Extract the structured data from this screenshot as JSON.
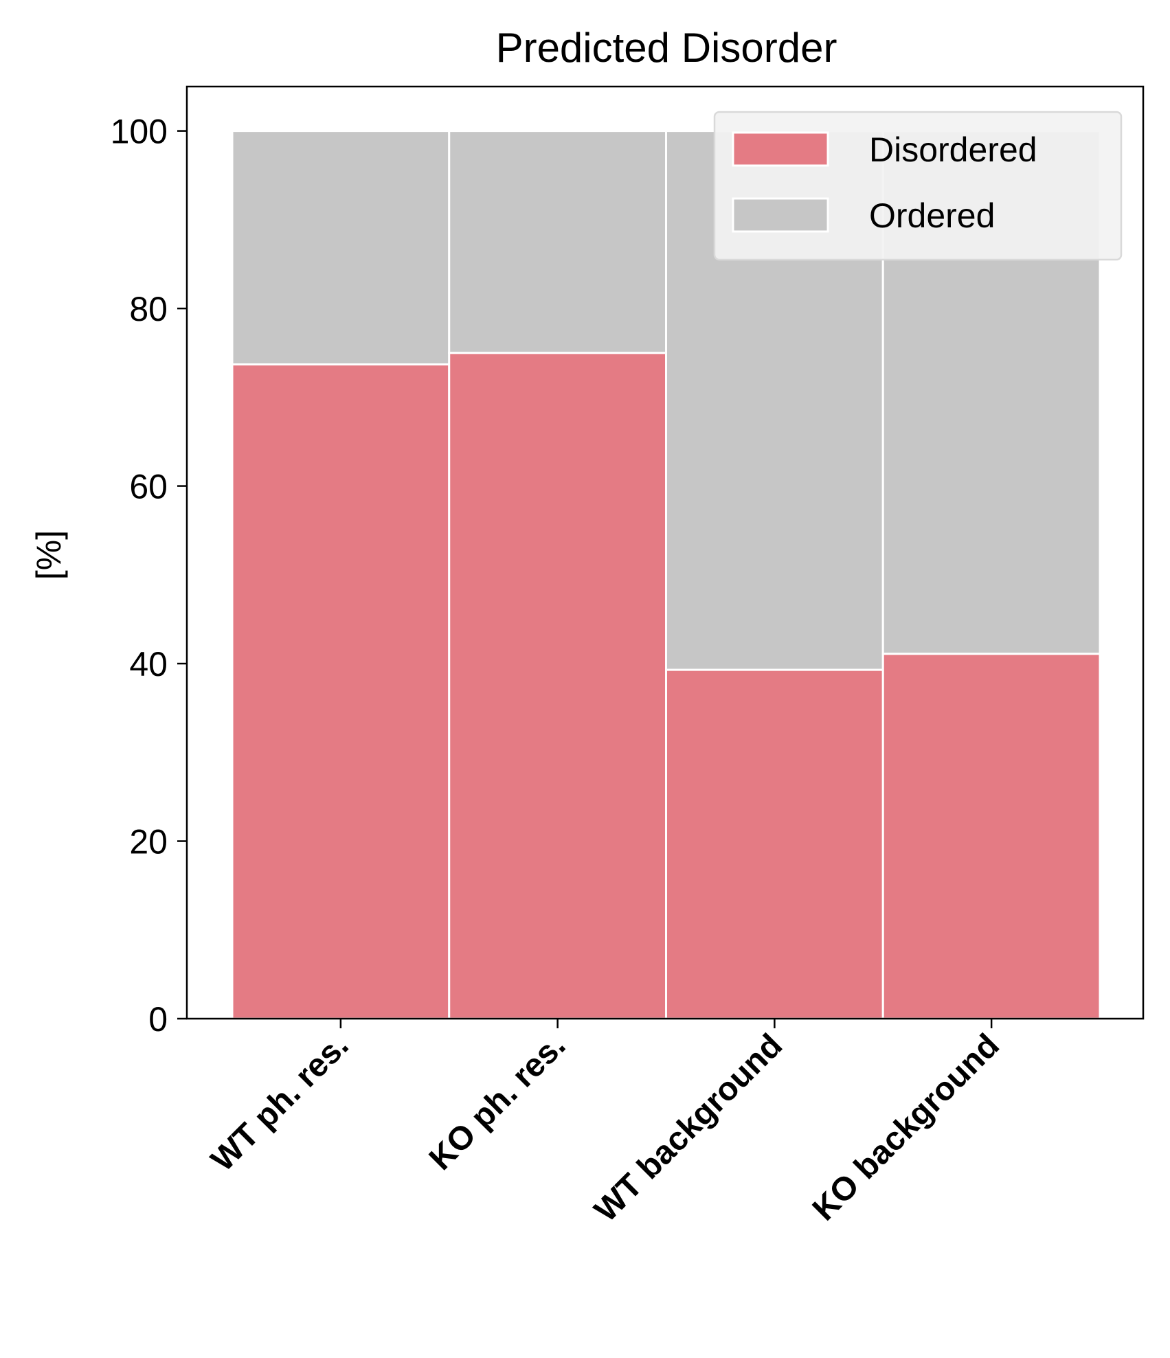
{
  "chart_data": {
    "type": "bar",
    "stacked": true,
    "title": "Predicted Disorder",
    "xlabel": "",
    "ylabel": "[%]",
    "categories": [
      "WT ph. res.",
      "KO ph. res.",
      "WT background",
      "KO background"
    ],
    "series": [
      {
        "name": "Disordered",
        "color": "#e47b84",
        "values": [
          73.7,
          75.0,
          39.3,
          41.1
        ]
      },
      {
        "name": "Ordered",
        "color": "#c6c6c6",
        "values": [
          26.3,
          25.0,
          60.7,
          58.9
        ]
      }
    ],
    "ylim": [
      0,
      105
    ],
    "yticks": [
      0,
      20,
      40,
      60,
      80,
      100
    ],
    "grid": false,
    "legend_position": "top-right"
  }
}
